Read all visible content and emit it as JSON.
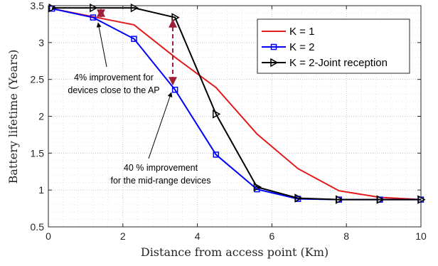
{
  "chart_data": {
    "type": "line",
    "xlabel": "Distance from access point (Km)",
    "ylabel": "Battery lifetime (Years)",
    "xlim": [
      0,
      10
    ],
    "ylim": [
      0.5,
      3.5
    ],
    "xticks": [
      "0",
      "2",
      "4",
      "6",
      "8",
      "10"
    ],
    "yticks": [
      "0.5",
      "1",
      "1.5",
      "2",
      "2.5",
      "3",
      "3.5"
    ],
    "grid": "on (major and minor, dotted)",
    "legend_position": "top-right",
    "series": [
      {
        "name": "K = 1",
        "color": "#e41a1c",
        "marker": "none",
        "x": [
          0.1,
          1.2,
          2.3,
          3.4,
          4.5,
          5.6,
          6.7,
          7.8,
          8.9,
          10.0
        ],
        "y": [
          3.46,
          3.35,
          3.24,
          2.8,
          2.39,
          1.76,
          1.29,
          0.99,
          0.9,
          0.87
        ]
      },
      {
        "name": "K = 2",
        "color": "#0000ff",
        "marker": "square",
        "x": [
          0.1,
          1.2,
          2.3,
          3.4,
          4.5,
          5.6,
          6.7,
          7.8,
          8.9,
          10.0
        ],
        "y": [
          3.46,
          3.34,
          3.05,
          2.36,
          1.48,
          1.01,
          0.88,
          0.87,
          0.87,
          0.87
        ]
      },
      {
        "name": "K = 2-Joint reception",
        "color": "#000000",
        "marker": "triangle-right",
        "x": [
          0.1,
          1.2,
          2.3,
          3.4,
          4.5,
          5.6,
          6.7,
          7.8,
          8.9,
          10.0
        ],
        "y": [
          3.47,
          3.47,
          3.47,
          3.34,
          2.03,
          1.04,
          0.89,
          0.87,
          0.87,
          0.87
        ]
      }
    ],
    "annotations": [
      {
        "lines": [
          "4% improvement for",
          "devices close to the AP"
        ]
      },
      {
        "lines": [
          "40 % improvement",
          "for the mid-range devices"
        ]
      }
    ],
    "arrow_color": "#a0203a"
  }
}
